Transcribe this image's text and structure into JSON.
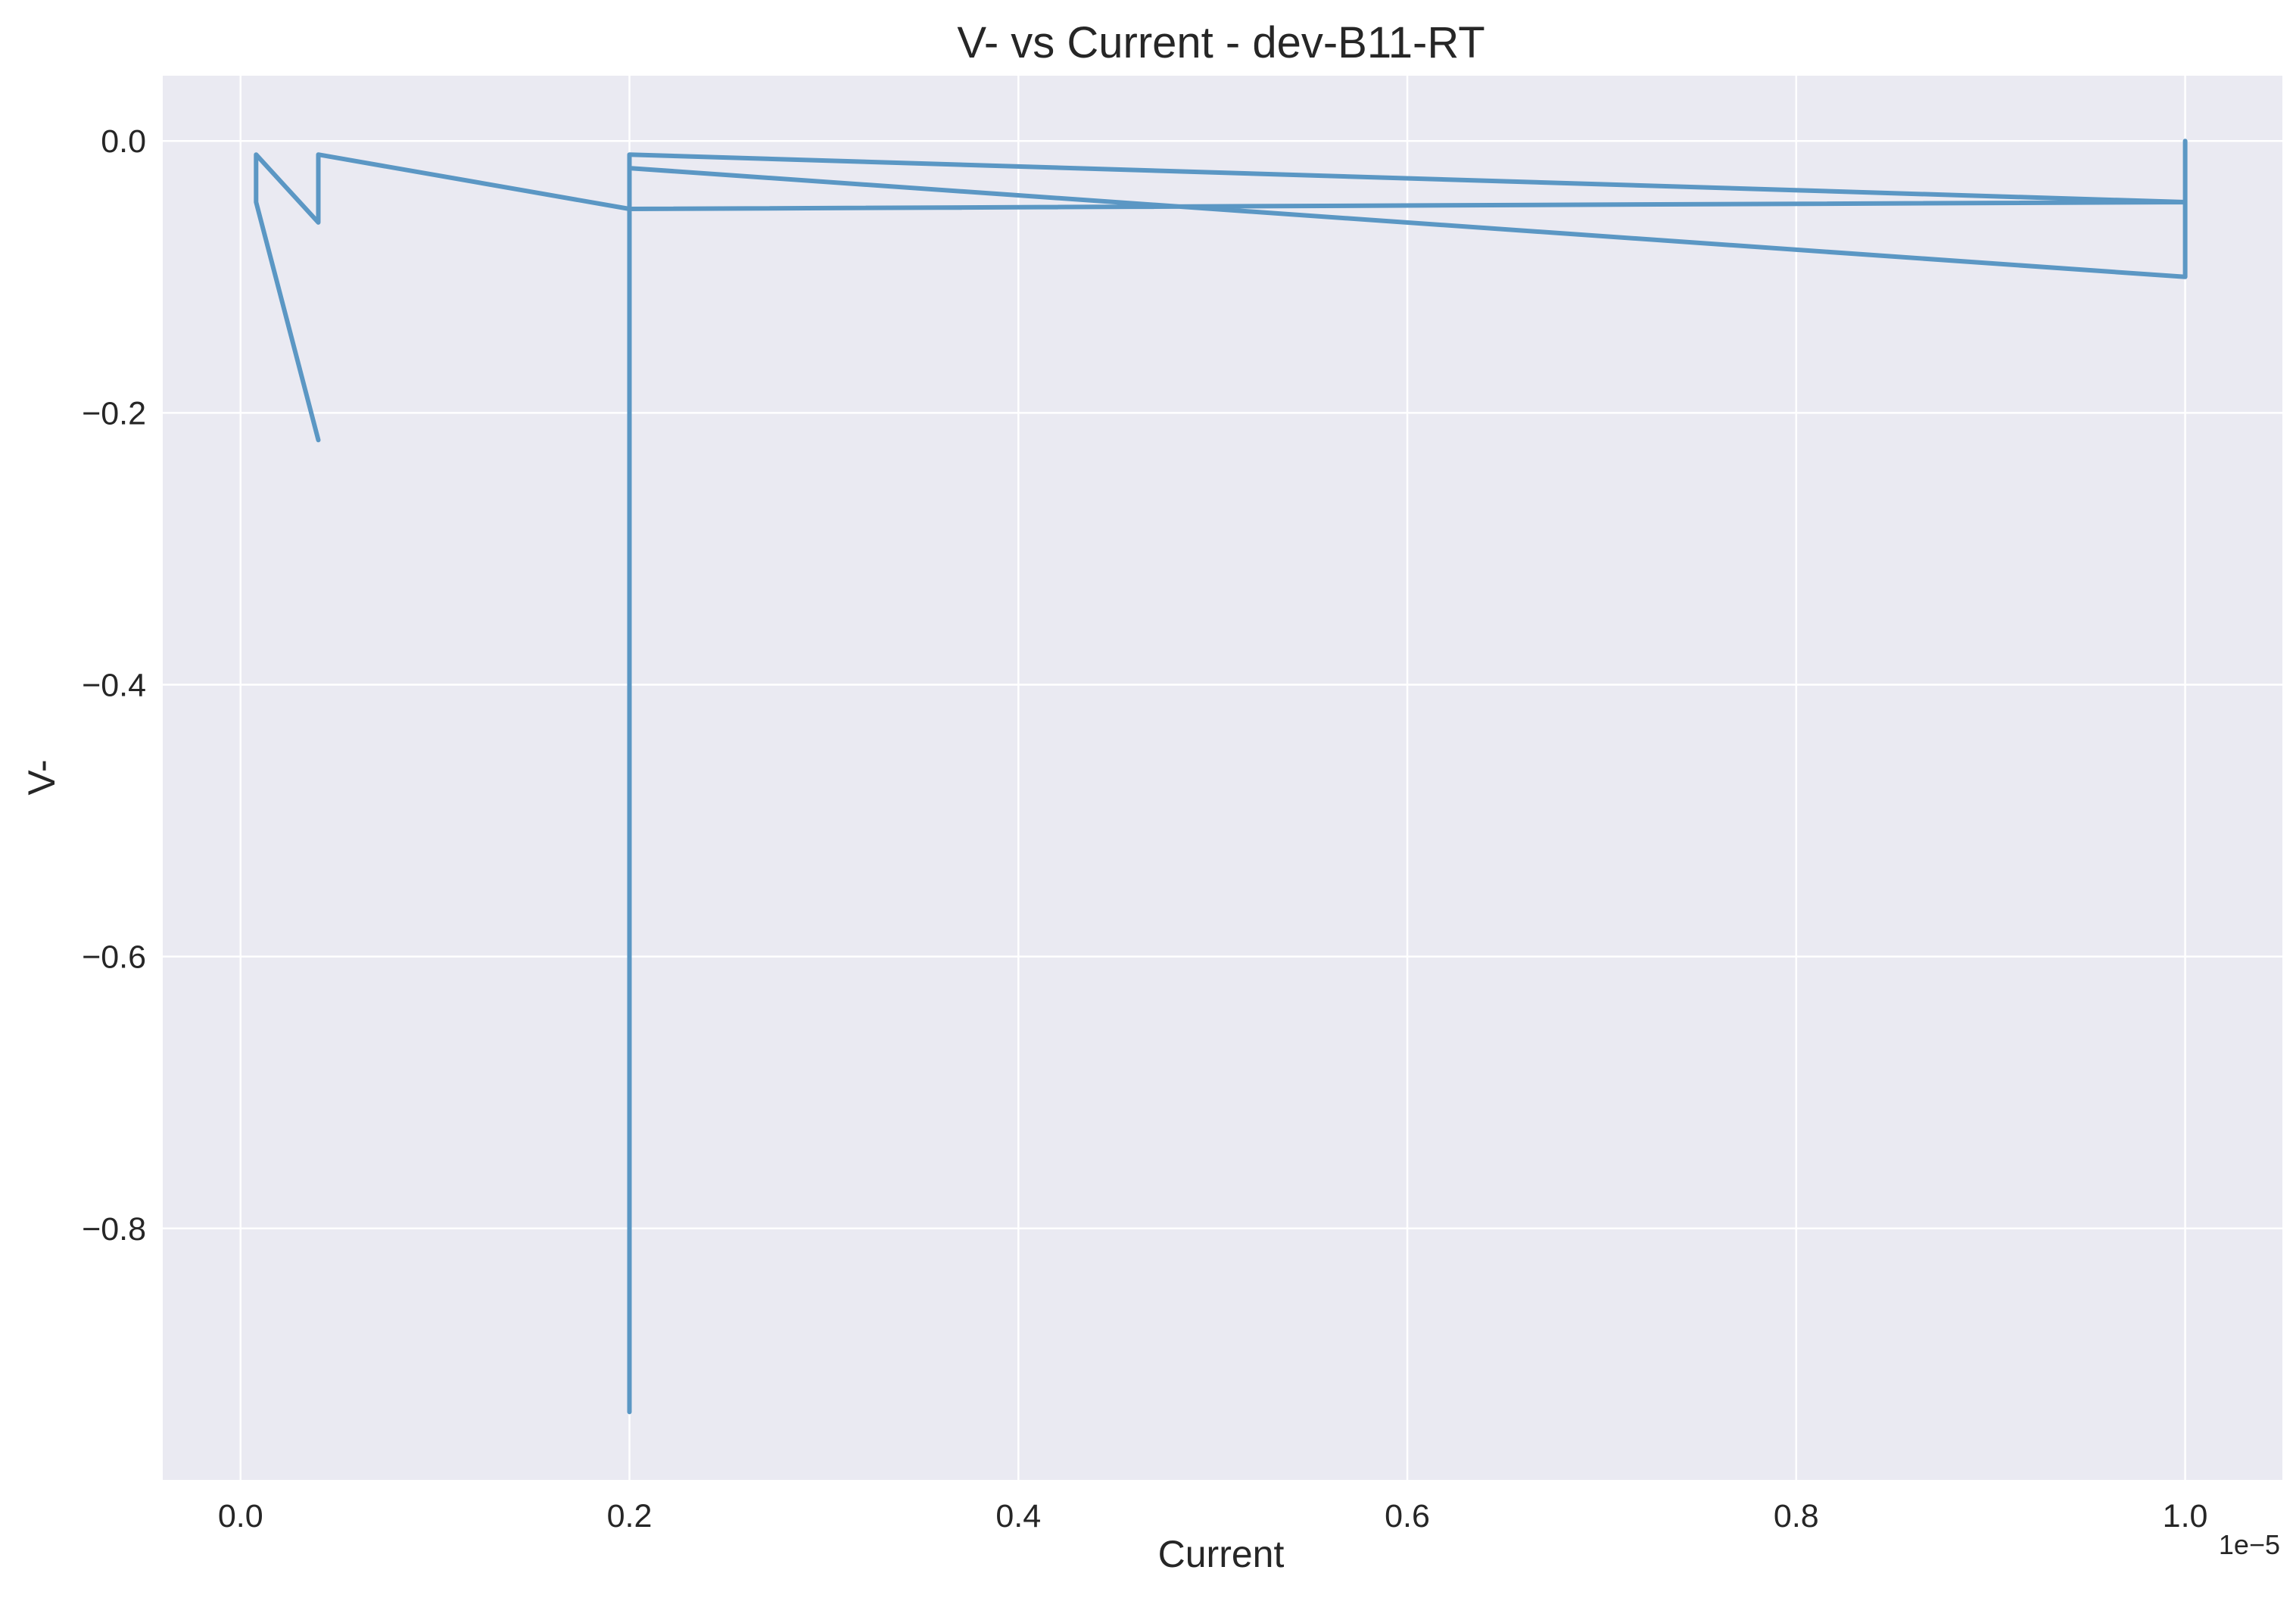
{
  "chart_data": {
    "type": "line",
    "title": "V- vs Current - dev-B11-RT",
    "xlabel": "Current",
    "ylabel": "V-",
    "x_offset_label": "1e−5",
    "xlim": [
      -0.04,
      1.05
    ],
    "ylim": [
      -0.985,
      0.048
    ],
    "x_ticks": [
      0.0,
      0.2,
      0.4,
      0.6,
      0.8,
      1.0
    ],
    "x_tick_labels": [
      "0.0",
      "0.2",
      "0.4",
      "0.6",
      "0.8",
      "1.0"
    ],
    "y_ticks": [
      0.0,
      -0.2,
      -0.4,
      -0.6,
      -0.8
    ],
    "y_tick_labels": [
      "0.0",
      "−0.2",
      "−0.4",
      "−0.6",
      "−0.8"
    ],
    "grid": true,
    "series": [
      {
        "color": "#5b97c4",
        "x": [
          1.0,
          1.0,
          0.2,
          0.2,
          0.2,
          1.0,
          1.0,
          0.2,
          0.04,
          0.04,
          0.008,
          0.008,
          0.04
        ],
        "y": [
          0.0,
          -0.045,
          -0.01,
          -0.935,
          -0.02,
          -0.1,
          -0.045,
          -0.05,
          -0.01,
          -0.06,
          -0.01,
          -0.045,
          -0.22
        ]
      }
    ]
  }
}
